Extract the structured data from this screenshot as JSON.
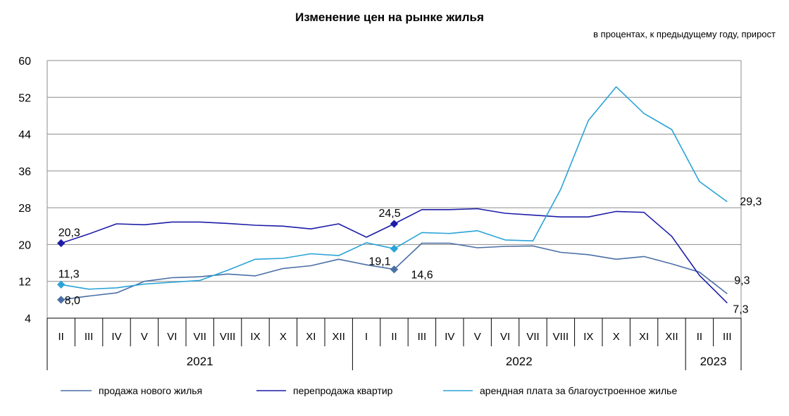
{
  "chart_data": {
    "type": "line",
    "title": "Изменение цен на рынке жилья",
    "subtitle": "в процентах, к предыдущему году, прирост",
    "ylim": [
      4,
      60
    ],
    "yticks": [
      4,
      12,
      20,
      28,
      36,
      44,
      52,
      60
    ],
    "grid": true,
    "legend_position": "bottom",
    "categories": [
      "II",
      "III",
      "IV",
      "V",
      "VI",
      "VII",
      "VIII",
      "IX",
      "X",
      "XI",
      "XII",
      "I",
      "II",
      "III",
      "IV",
      "V",
      "VI",
      "VII",
      "VIII",
      "IX",
      "X",
      "XI",
      "XII",
      "II",
      "III"
    ],
    "year_groups": [
      {
        "label": "2021",
        "start": 0,
        "end": 10
      },
      {
        "label": "2022",
        "start": 11,
        "end": 22
      },
      {
        "label": "2023",
        "start": 23,
        "end": 24
      }
    ],
    "series": [
      {
        "name": "продажа нового жилья",
        "color": "#4a6fa5",
        "values": [
          8.0,
          8.8,
          9.5,
          12.0,
          12.8,
          13.0,
          13.6,
          13.2,
          14.8,
          15.4,
          16.8,
          15.6,
          14.6,
          20.3,
          20.3,
          19.3,
          19.6,
          19.7,
          18.3,
          17.8,
          16.8,
          17.4,
          15.8,
          14.0,
          9.3
        ],
        "labels": [
          {
            "index": 0,
            "text": "8,0",
            "marker": true
          },
          {
            "index": 12,
            "text": "14,6",
            "marker": true
          },
          {
            "index": 24,
            "text": "9,3",
            "marker": false
          }
        ]
      },
      {
        "name": "перепродажа квартир",
        "color": "#1c1ca8",
        "values": [
          20.3,
          22.3,
          24.5,
          24.3,
          24.9,
          24.9,
          24.6,
          24.2,
          24.0,
          23.4,
          24.5,
          21.6,
          24.5,
          27.6,
          27.6,
          27.8,
          26.8,
          26.4,
          26.0,
          26.0,
          27.2,
          27.0,
          21.8,
          13.3,
          7.3
        ],
        "labels": [
          {
            "index": 0,
            "text": "20,3",
            "marker": true
          },
          {
            "index": 12,
            "text": "24,5",
            "marker": true
          },
          {
            "index": 24,
            "text": "7,3",
            "marker": false
          }
        ]
      },
      {
        "name": "арендная плата за благоустроенное жилье",
        "color": "#2aa3d6",
        "values": [
          11.3,
          10.3,
          10.6,
          11.4,
          11.8,
          12.2,
          14.4,
          16.8,
          17.0,
          18.0,
          17.6,
          20.4,
          19.1,
          22.6,
          22.4,
          23.0,
          21.0,
          20.8,
          32.0,
          47.0,
          54.3,
          48.5,
          45.0,
          33.7,
          29.3
        ],
        "labels": [
          {
            "index": 0,
            "text": "11,3",
            "marker": true
          },
          {
            "index": 12,
            "text": "19,1",
            "marker": true
          },
          {
            "index": 24,
            "text": "29,3",
            "marker": false
          }
        ]
      }
    ]
  }
}
